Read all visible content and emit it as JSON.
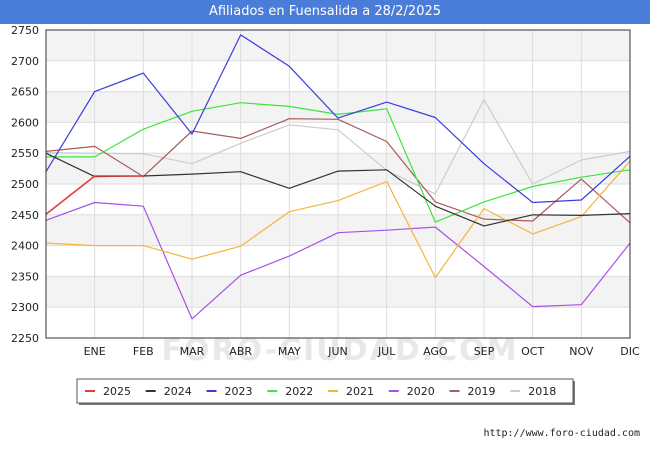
{
  "title": "Afiliados en Fuensalida a 28/2/2025",
  "footer_url": "http://www.foro-ciudad.com",
  "watermark": "FORO-CIUDAD.COM",
  "chart_data": {
    "type": "line",
    "title": "Afiliados en Fuensalida a 28/2/2025",
    "xlabel": "",
    "ylabel": "",
    "categories": [
      "",
      "ENE",
      "FEB",
      "MAR",
      "ABR",
      "MAY",
      "JUN",
      "JUL",
      "AGO",
      "SEP",
      "OCT",
      "NOV",
      "DIC"
    ],
    "ylim": [
      2250,
      2750
    ],
    "yticks": [
      2250,
      2300,
      2350,
      2400,
      2450,
      2500,
      2550,
      2600,
      2650,
      2700,
      2750
    ],
    "grid": true,
    "legend_position": "bottom",
    "series": [
      {
        "name": "2025",
        "color": "#e03c3c",
        "values": [
          2451,
          2513,
          2513,
          null,
          null,
          null,
          null,
          null,
          null,
          null,
          null,
          null,
          null
        ]
      },
      {
        "name": "2024",
        "color": "#333333",
        "values": [
          2550,
          2512,
          2513,
          2516,
          2520,
          2493,
          2521,
          2523,
          2464,
          2432,
          2450,
          2449,
          2452
        ]
      },
      {
        "name": "2023",
        "color": "#3c3cdc",
        "values": [
          2520,
          2650,
          2680,
          2581,
          2742,
          2691,
          2607,
          2633,
          2608,
          2533,
          2470,
          2474,
          2545
        ]
      },
      {
        "name": "2022",
        "color": "#3ce63c",
        "values": [
          2544,
          2544,
          2589,
          2618,
          2632,
          2626,
          2613,
          2622,
          2438,
          2471,
          2496,
          2511,
          2523
        ]
      },
      {
        "name": "2021",
        "color": "#f5b43c",
        "values": [
          2404,
          2400,
          2400,
          2378,
          2399,
          2455,
          2473,
          2504,
          2348,
          2460,
          2419,
          2447,
          2537
        ]
      },
      {
        "name": "2020",
        "color": "#aa50e6",
        "values": [
          2441,
          2470,
          2464,
          2281,
          2352,
          2383,
          2421,
          2425,
          2430,
          2366,
          2301,
          2304,
          2404
        ]
      },
      {
        "name": "2019",
        "color": "#aa5a5a",
        "values": [
          2553,
          2561,
          2512,
          2586,
          2574,
          2606,
          2605,
          2569,
          2471,
          2443,
          2440,
          2508,
          2437
        ]
      },
      {
        "name": "2018",
        "color": "#cccccc",
        "values": [
          2551,
          2550,
          2549,
          2533,
          2566,
          2596,
          2588,
          2522,
          2484,
          2637,
          2500,
          2539,
          2553
        ]
      }
    ]
  }
}
